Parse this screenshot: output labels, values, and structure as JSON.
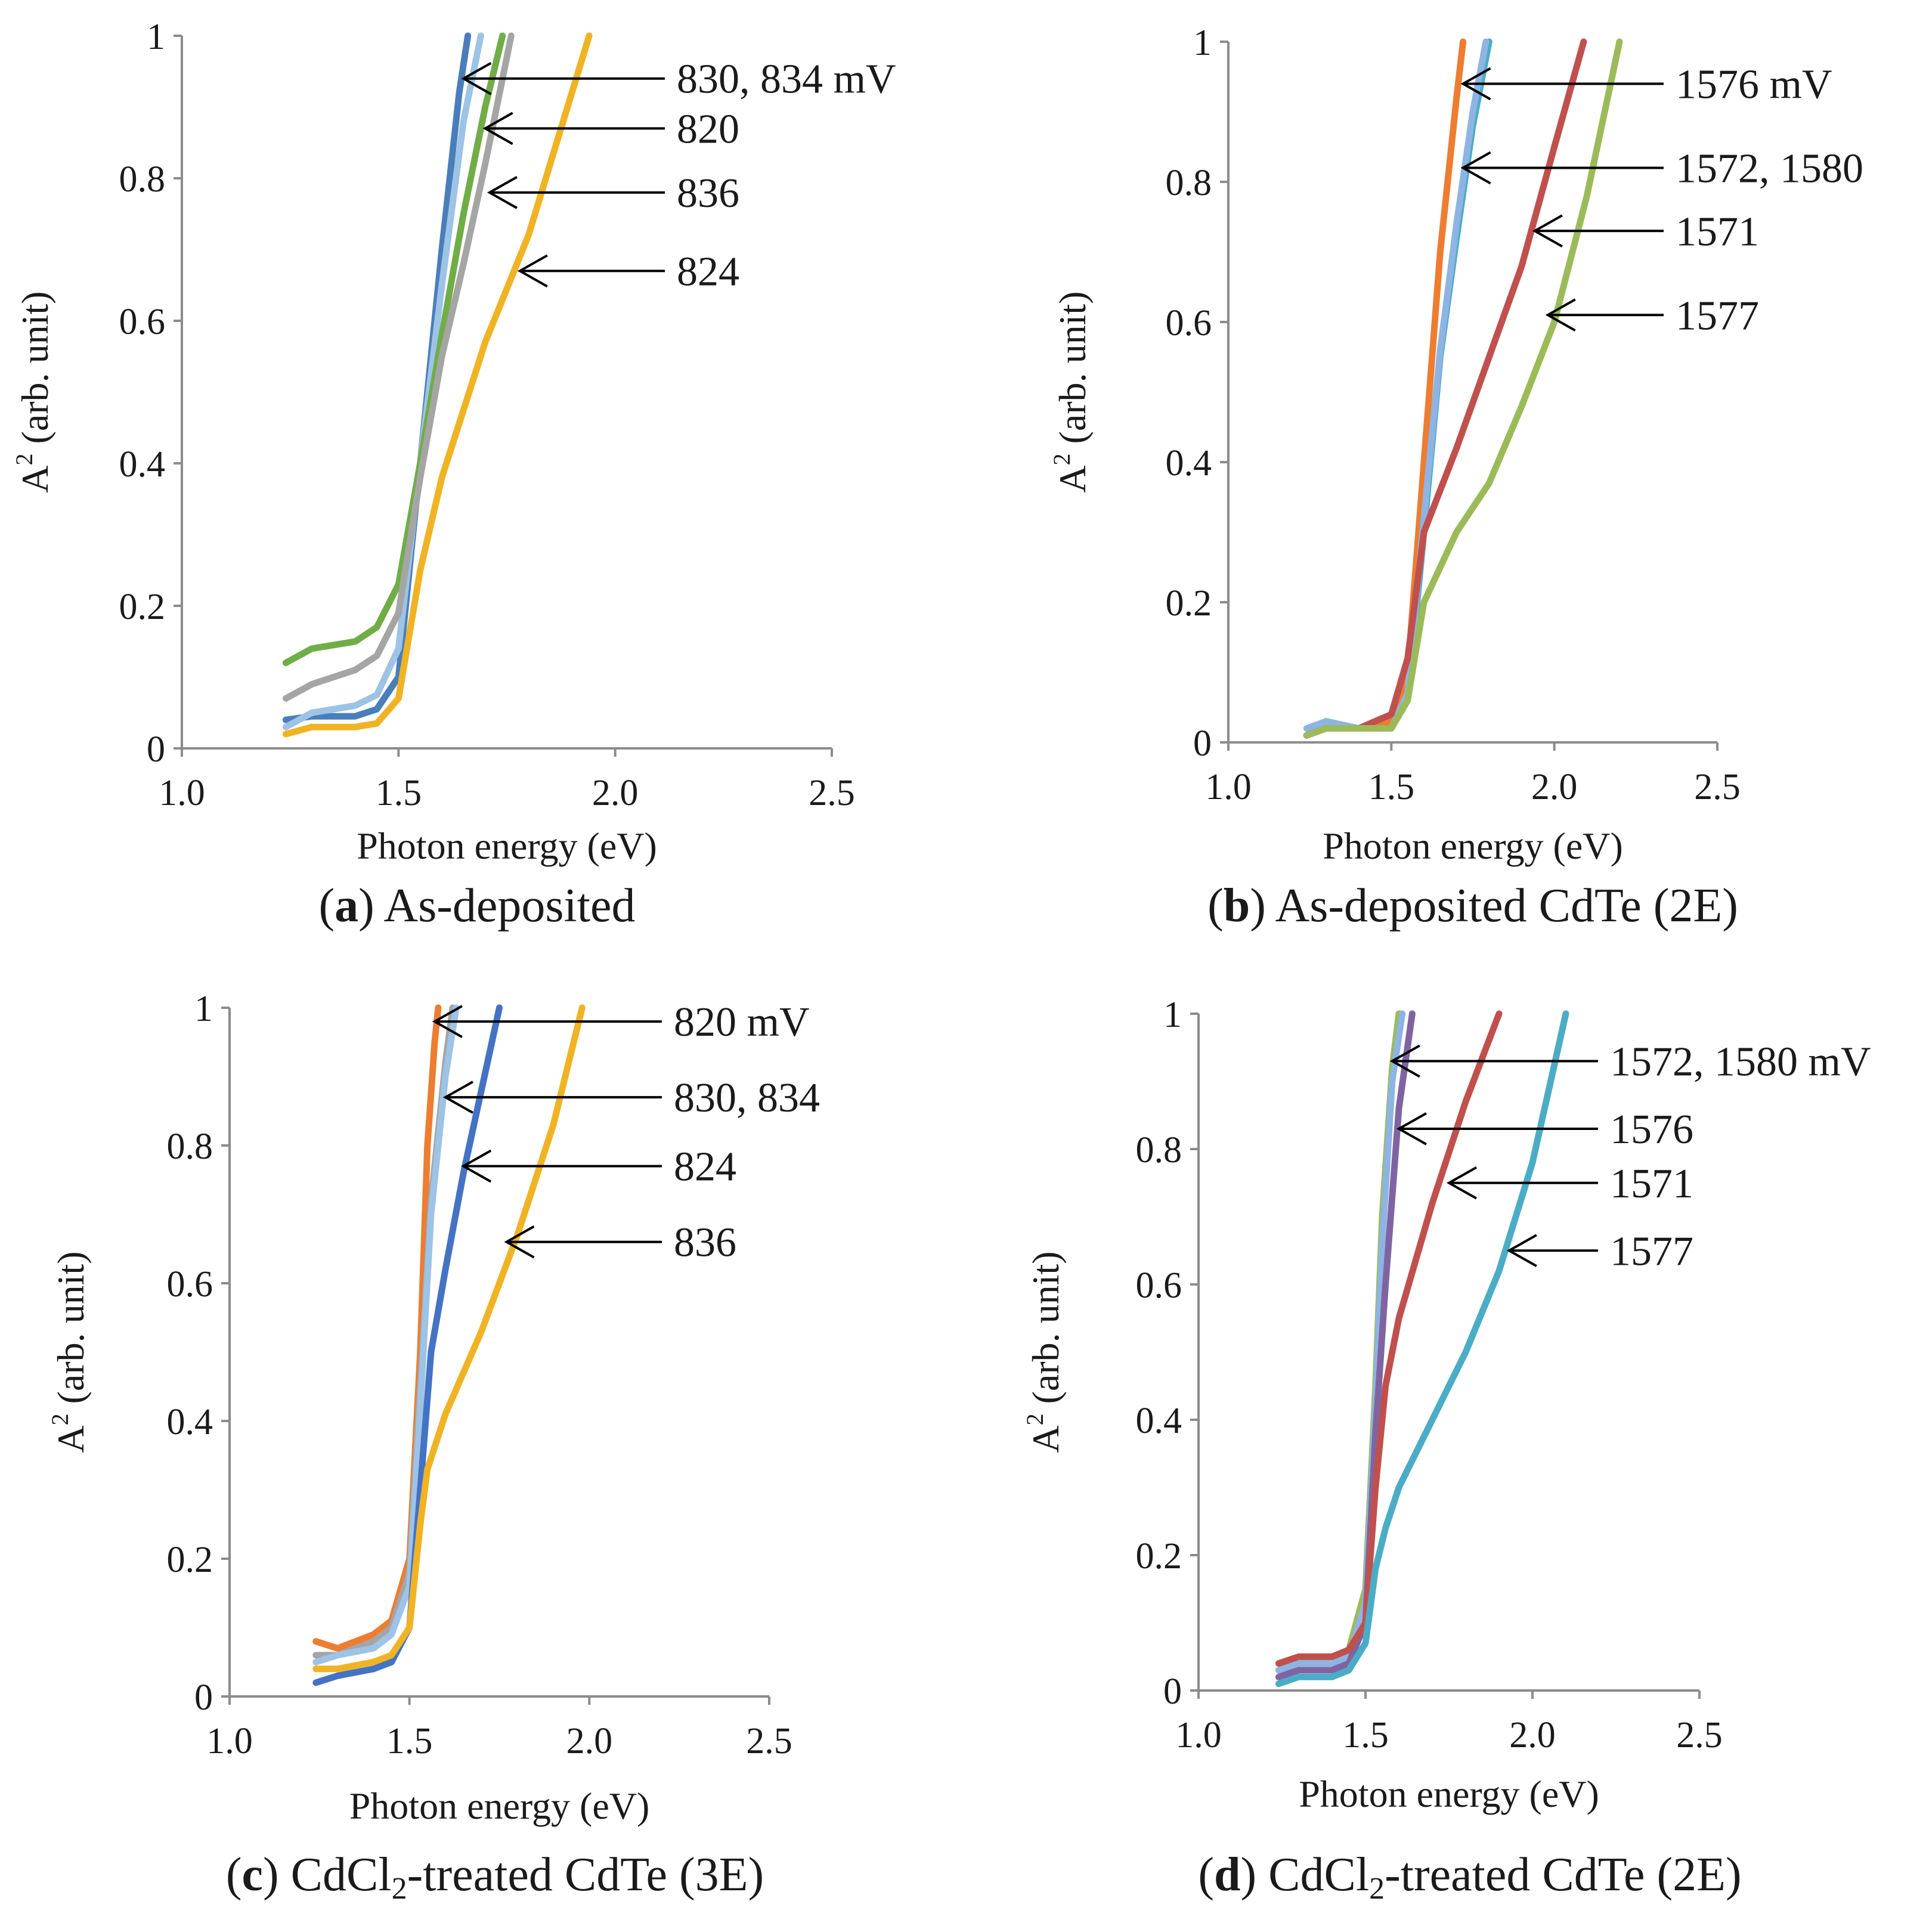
{
  "chart_data": [
    {
      "type": "line",
      "caption_letter": "a",
      "caption_text": "As-deposited",
      "xlabel": "Photon energy (eV)",
      "ylabel_main": "A",
      "ylabel_sup": "2",
      "ylabel_rest": " (arb. unit)",
      "xlim": [
        1.0,
        2.5
      ],
      "ylim": [
        0,
        1
      ],
      "xticks": [
        "1.0",
        "1.5",
        "2.0",
        "2.5"
      ],
      "yticks": [
        "0",
        "0.2",
        "0.4",
        "0.6",
        "0.8",
        "1"
      ],
      "series": [
        {
          "name": "830 mV",
          "color": "#4a7ebb",
          "x": [
            1.24,
            1.3,
            1.4,
            1.45,
            1.5,
            1.55,
            1.6,
            1.64,
            1.66
          ],
          "y": [
            0.04,
            0.045,
            0.045,
            0.055,
            0.1,
            0.4,
            0.7,
            0.92,
            1.0
          ]
        },
        {
          "name": "834 mV",
          "color": "#9dc3e6",
          "x": [
            1.24,
            1.3,
            1.4,
            1.45,
            1.5,
            1.55,
            1.6,
            1.65,
            1.69
          ],
          "y": [
            0.03,
            0.05,
            0.06,
            0.075,
            0.14,
            0.4,
            0.65,
            0.88,
            1.0
          ]
        },
        {
          "name": "820",
          "color": "#70ad47",
          "x": [
            1.24,
            1.3,
            1.4,
            1.45,
            1.5,
            1.55,
            1.6,
            1.65,
            1.7,
            1.74
          ],
          "y": [
            0.12,
            0.14,
            0.15,
            0.17,
            0.23,
            0.4,
            0.58,
            0.75,
            0.9,
            1.0
          ]
        },
        {
          "name": "836",
          "color": "#a5a5a5",
          "x": [
            1.24,
            1.3,
            1.4,
            1.45,
            1.5,
            1.55,
            1.6,
            1.65,
            1.7,
            1.76
          ],
          "y": [
            0.07,
            0.09,
            0.11,
            0.13,
            0.19,
            0.38,
            0.55,
            0.68,
            0.82,
            1.0
          ]
        },
        {
          "name": "824",
          "color": "#f0b323",
          "x": [
            1.24,
            1.3,
            1.4,
            1.45,
            1.5,
            1.55,
            1.6,
            1.7,
            1.8,
            1.9,
            1.94
          ],
          "y": [
            0.02,
            0.03,
            0.03,
            0.035,
            0.07,
            0.25,
            0.38,
            0.57,
            0.72,
            0.92,
            1.0
          ]
        }
      ],
      "annotations": [
        {
          "text": "830, 834 mV",
          "x": 1.65,
          "y": 0.94
        },
        {
          "text": "820",
          "x": 1.7,
          "y": 0.87
        },
        {
          "text": "836",
          "x": 1.71,
          "y": 0.78
        },
        {
          "text": "824",
          "x": 1.78,
          "y": 0.67
        }
      ]
    },
    {
      "type": "line",
      "caption_letter": "b",
      "caption_text": "As-deposited CdTe (2E)",
      "xlabel": "Photon energy (eV)",
      "ylabel_main": "A",
      "ylabel_sup": "2",
      "ylabel_rest": " (arb. unit)",
      "xlim": [
        1.0,
        2.5
      ],
      "ylim": [
        0,
        1
      ],
      "xticks": [
        "1.0",
        "1.5",
        "2.0",
        "2.5"
      ],
      "yticks": [
        "0",
        "0.2",
        "0.4",
        "0.6",
        "0.8",
        "1"
      ],
      "series": [
        {
          "name": "1576 mV",
          "color": "#ed7d31",
          "x": [
            1.24,
            1.3,
            1.4,
            1.5,
            1.55,
            1.6,
            1.65,
            1.7,
            1.72
          ],
          "y": [
            0.01,
            0.02,
            0.02,
            0.03,
            0.1,
            0.4,
            0.7,
            0.92,
            1.0
          ]
        },
        {
          "name": "1572",
          "color": "#4bacc6",
          "x": [
            1.24,
            1.3,
            1.4,
            1.5,
            1.55,
            1.6,
            1.65,
            1.7,
            1.75,
            1.8
          ],
          "y": [
            0.01,
            0.03,
            0.02,
            0.02,
            0.06,
            0.3,
            0.55,
            0.72,
            0.88,
            1.0
          ]
        },
        {
          "name": "1580",
          "color": "#8eb4e3",
          "x": [
            1.24,
            1.3,
            1.4,
            1.5,
            1.55,
            1.6,
            1.65,
            1.7,
            1.75,
            1.79
          ],
          "y": [
            0.02,
            0.03,
            0.02,
            0.02,
            0.07,
            0.32,
            0.56,
            0.74,
            0.9,
            1.0
          ]
        },
        {
          "name": "1571",
          "color": "#c0504d",
          "x": [
            1.24,
            1.3,
            1.4,
            1.5,
            1.55,
            1.6,
            1.7,
            1.8,
            1.9,
            2.0,
            2.09
          ],
          "y": [
            0.01,
            0.02,
            0.02,
            0.04,
            0.12,
            0.3,
            0.42,
            0.55,
            0.68,
            0.85,
            1.0
          ]
        },
        {
          "name": "1577",
          "color": "#9bbb59",
          "x": [
            1.24,
            1.3,
            1.4,
            1.5,
            1.55,
            1.6,
            1.7,
            1.8,
            1.9,
            2.0,
            2.1,
            2.2
          ],
          "y": [
            0.01,
            0.02,
            0.02,
            0.02,
            0.06,
            0.2,
            0.3,
            0.37,
            0.48,
            0.6,
            0.78,
            1.0
          ]
        }
      ],
      "annotations": [
        {
          "text": "1576 mV",
          "x": 1.72,
          "y": 0.94
        },
        {
          "text": "1572, 1580",
          "x": 1.72,
          "y": 0.82
        },
        {
          "text": "1571",
          "x": 1.94,
          "y": 0.73
        },
        {
          "text": "1577",
          "x": 1.98,
          "y": 0.61
        }
      ]
    },
    {
      "type": "line",
      "caption_letter": "c",
      "caption_text_pre": "CdCl",
      "caption_text_sub": "2",
      "caption_text_post": "-treated CdTe (3E)",
      "xlabel": "Photon energy (eV)",
      "ylabel_main": "A",
      "ylabel_sup": "2",
      "ylabel_rest": " (arb. unit)",
      "xlim": [
        1.0,
        2.5
      ],
      "ylim": [
        0,
        1
      ],
      "xticks": [
        "1.0",
        "1.5",
        "2.0",
        "2.5"
      ],
      "yticks": [
        "0",
        "0.2",
        "0.4",
        "0.6",
        "0.8",
        "1"
      ],
      "series": [
        {
          "name": "820 mV",
          "color": "#ed7d31",
          "x": [
            1.24,
            1.3,
            1.4,
            1.45,
            1.5,
            1.53,
            1.55,
            1.57,
            1.58
          ],
          "y": [
            0.08,
            0.07,
            0.09,
            0.11,
            0.2,
            0.5,
            0.8,
            0.95,
            1.0
          ]
        },
        {
          "name": "830",
          "color": "#a5a5a5",
          "x": [
            1.24,
            1.3,
            1.4,
            1.45,
            1.5,
            1.53,
            1.56,
            1.6,
            1.62
          ],
          "y": [
            0.06,
            0.06,
            0.08,
            0.1,
            0.18,
            0.45,
            0.72,
            0.92,
            1.0
          ]
        },
        {
          "name": "834",
          "color": "#9dc3e6",
          "x": [
            1.24,
            1.3,
            1.4,
            1.45,
            1.5,
            1.53,
            1.56,
            1.6,
            1.63
          ],
          "y": [
            0.05,
            0.06,
            0.07,
            0.09,
            0.16,
            0.42,
            0.7,
            0.9,
            1.0
          ]
        },
        {
          "name": "824",
          "color": "#4472c4",
          "x": [
            1.24,
            1.3,
            1.4,
            1.45,
            1.5,
            1.53,
            1.56,
            1.6,
            1.65,
            1.7,
            1.75
          ],
          "y": [
            0.02,
            0.03,
            0.04,
            0.05,
            0.1,
            0.3,
            0.5,
            0.62,
            0.76,
            0.88,
            1.0
          ]
        },
        {
          "name": "836",
          "color": "#f0b323",
          "x": [
            1.24,
            1.3,
            1.4,
            1.45,
            1.5,
            1.53,
            1.55,
            1.6,
            1.7,
            1.8,
            1.9,
            1.98
          ],
          "y": [
            0.04,
            0.04,
            0.05,
            0.06,
            0.1,
            0.25,
            0.33,
            0.41,
            0.53,
            0.67,
            0.83,
            1.0
          ]
        }
      ],
      "annotations": [
        {
          "text": "820 mV",
          "x": 1.57,
          "y": 0.98
        },
        {
          "text": "830, 834",
          "x": 1.6,
          "y": 0.87
        },
        {
          "text": "824",
          "x": 1.65,
          "y": 0.77
        },
        {
          "text": "836",
          "x": 1.77,
          "y": 0.66
        }
      ]
    },
    {
      "type": "line",
      "caption_letter": "d",
      "caption_text_pre": "CdCl",
      "caption_text_sub": "2",
      "caption_text_post": "-treated CdTe (2E)",
      "xlabel": "Photon energy (eV)",
      "ylabel_main": "A",
      "ylabel_sup": "2",
      "ylabel_rest": " (arb. unit)",
      "xlim": [
        1.0,
        2.5
      ],
      "ylim": [
        0,
        1
      ],
      "xticks": [
        "1.0",
        "1.5",
        "2.0",
        "2.5"
      ],
      "yticks": [
        "0",
        "0.2",
        "0.4",
        "0.6",
        "0.8",
        "1"
      ],
      "series": [
        {
          "name": "1572",
          "color": "#9bbb59",
          "x": [
            1.24,
            1.3,
            1.4,
            1.45,
            1.5,
            1.53,
            1.55,
            1.58,
            1.6
          ],
          "y": [
            0.03,
            0.04,
            0.05,
            0.06,
            0.15,
            0.45,
            0.7,
            0.92,
            1.0
          ]
        },
        {
          "name": "1580 mV",
          "color": "#8eb4e3",
          "x": [
            1.24,
            1.3,
            1.4,
            1.45,
            1.5,
            1.53,
            1.55,
            1.58,
            1.61
          ],
          "y": [
            0.03,
            0.04,
            0.04,
            0.05,
            0.13,
            0.42,
            0.66,
            0.9,
            1.0
          ]
        },
        {
          "name": "1576",
          "color": "#8064a2",
          "x": [
            1.24,
            1.3,
            1.4,
            1.45,
            1.5,
            1.53,
            1.56,
            1.6,
            1.64
          ],
          "y": [
            0.02,
            0.03,
            0.03,
            0.04,
            0.1,
            0.38,
            0.6,
            0.86,
            1.0
          ]
        },
        {
          "name": "1571",
          "color": "#c0504d",
          "x": [
            1.24,
            1.3,
            1.4,
            1.45,
            1.5,
            1.53,
            1.56,
            1.6,
            1.7,
            1.8,
            1.9
          ],
          "y": [
            0.04,
            0.05,
            0.05,
            0.06,
            0.1,
            0.3,
            0.45,
            0.55,
            0.72,
            0.87,
            1.0
          ]
        },
        {
          "name": "1577",
          "color": "#4bacc6",
          "x": [
            1.24,
            1.3,
            1.4,
            1.45,
            1.5,
            1.53,
            1.56,
            1.6,
            1.7,
            1.8,
            1.9,
            2.0,
            2.1
          ],
          "y": [
            0.01,
            0.02,
            0.02,
            0.03,
            0.07,
            0.18,
            0.24,
            0.3,
            0.4,
            0.5,
            0.62,
            0.78,
            1.0
          ]
        }
      ],
      "annotations": [
        {
          "text": "1572, 1580 mV",
          "x": 1.58,
          "y": 0.93
        },
        {
          "text": "1576",
          "x": 1.6,
          "y": 0.83
        },
        {
          "text": "1571",
          "x": 1.75,
          "y": 0.75
        },
        {
          "text": "1577",
          "x": 1.93,
          "y": 0.65
        }
      ]
    }
  ]
}
